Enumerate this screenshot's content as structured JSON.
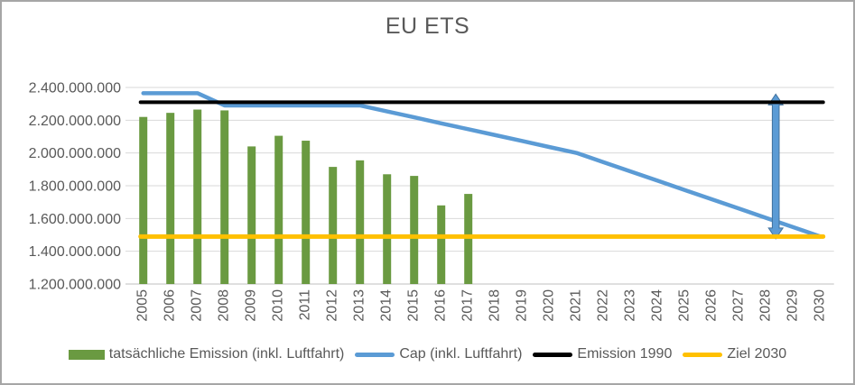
{
  "frame": {
    "background_color": "#FFFFFF",
    "border_color": "#A6A6A6",
    "text_color": "#595959",
    "gridline_color": "#D9D9D9",
    "axisline_color": "#BFBFBF"
  },
  "chart_data": {
    "type": "bar",
    "title": "EU ETS",
    "grid": true,
    "legend_position": "bottom",
    "categories": [
      "2005",
      "2006",
      "2007",
      "2008",
      "2009",
      "2010",
      "2011",
      "2012",
      "2013",
      "2014",
      "2015",
      "2016",
      "2017",
      "2018",
      "2019",
      "2020",
      "2021",
      "2022",
      "2023",
      "2024",
      "2025",
      "2026",
      "2027",
      "2028",
      "2029",
      "2030"
    ],
    "y_axis": {
      "min": 1200000000,
      "max": 2400000000,
      "step": 200000000,
      "tick_labels": [
        "2.400.000.000",
        "2.200.000.000",
        "2.000.000.000",
        "1.800.000.000",
        "1.600.000.000",
        "1.400.000.000",
        "1.200.000.000"
      ]
    },
    "series": [
      {
        "name": "tatsächliche Emission (inkl. Luftfahrt)",
        "type": "bar",
        "color": "#6A9A41",
        "years": [
          "2005",
          "2006",
          "2007",
          "2008",
          "2009",
          "2010",
          "2011",
          "2012",
          "2013",
          "2014",
          "2015",
          "2016",
          "2017"
        ],
        "values": [
          2220000000,
          2245000000,
          2265000000,
          2260000000,
          2040000000,
          2105000000,
          2075000000,
          1915000000,
          1955000000,
          1870000000,
          1860000000,
          1680000000,
          1750000000
        ]
      },
      {
        "name": "Cap (inkl. Luftfahrt)",
        "type": "line",
        "color": "#5B9BD5",
        "values": [
          2365000000,
          2365000000,
          2365000000,
          2290000000,
          2290000000,
          2290000000,
          2290000000,
          2290000000,
          2290000000,
          2254000000,
          2218000000,
          2181000000,
          2145000000,
          2109000000,
          2073000000,
          2036000000,
          2000000000,
          1943000000,
          1887000000,
          1830000000,
          1773000000,
          1717000000,
          1660000000,
          1603000000,
          1547000000,
          1490000000
        ]
      },
      {
        "name": "Emission 1990",
        "type": "line",
        "color": "#000000",
        "constant": 2310000000
      },
      {
        "name": "Ziel 2030",
        "type": "line",
        "color": "#FFC000",
        "constant": 1490000000
      }
    ],
    "annotation": {
      "type": "double-arrow",
      "color": "#5B9BD5",
      "border_color": "#41719C",
      "x_year": 2028.35,
      "from_value": 2310000000,
      "to_value": 1490000000
    }
  }
}
